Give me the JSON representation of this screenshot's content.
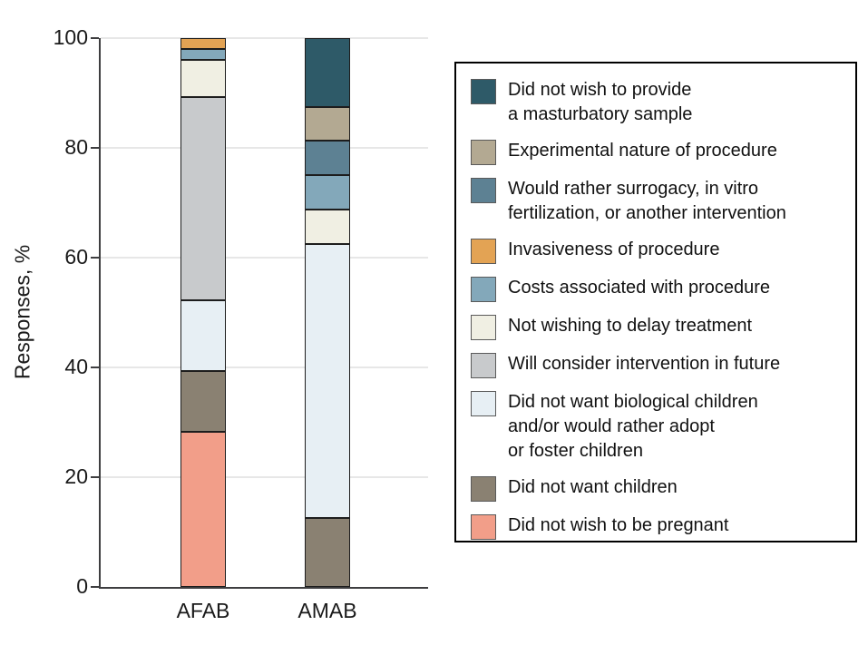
{
  "chart_data": {
    "type": "bar",
    "stacked": true,
    "title": "",
    "ylabel": "Responses, %",
    "xlabel": "",
    "ylim": [
      0,
      100
    ],
    "yticks": [
      0,
      20,
      40,
      60,
      80,
      100
    ],
    "grid": true,
    "legend_position": "right",
    "categories": [
      "AFAB",
      "AMAB"
    ],
    "series": [
      {
        "name": "Did not wish to provide a masturbatory sample",
        "label_lines": [
          "Did not wish to provide",
          "a masturbatory sample"
        ],
        "color": "#2e5a68",
        "values": [
          0,
          12.5
        ]
      },
      {
        "name": "Experimental nature of procedure",
        "label_lines": [
          "Experimental nature of procedure"
        ],
        "color": "#b3a992",
        "values": [
          0,
          6.25
        ]
      },
      {
        "name": "Would rather surrogacy, in vitro fertilization, or another intervention",
        "label_lines": [
          "Would rather surrogacy, in vitro",
          "fertilization, or another intervention"
        ],
        "color": "#5d8193",
        "values": [
          0,
          6.25
        ]
      },
      {
        "name": "Invasiveness of procedure",
        "label_lines": [
          "Invasiveness of procedure"
        ],
        "color": "#e3a354",
        "values": [
          2,
          0
        ]
      },
      {
        "name": "Costs associated with procedure",
        "label_lines": [
          "Costs associated with procedure"
        ],
        "color": "#83a8ba",
        "values": [
          2,
          6.25
        ]
      },
      {
        "name": "Not wishing to delay treatment",
        "label_lines": [
          "Not wishing to delay treatment"
        ],
        "color": "#f0efe3",
        "values": [
          6.7,
          6.25
        ]
      },
      {
        "name": "Will consider intervention in future",
        "label_lines": [
          "Will consider intervention in future"
        ],
        "color": "#c8cacc",
        "values": [
          37,
          0
        ]
      },
      {
        "name": "Did not want biological children and/or would rather adopt or foster children",
        "label_lines": [
          "Did not want biological children",
          "and/or would rather adopt",
          "or foster children"
        ],
        "color": "#e7eff4",
        "values": [
          13,
          50
        ]
      },
      {
        "name": "Did not want children",
        "label_lines": [
          "Did not want children"
        ],
        "color": "#8a8172",
        "values": [
          11,
          12.5
        ]
      },
      {
        "name": "Did not wish to be pregnant",
        "label_lines": [
          "Did not wish to be pregnant"
        ],
        "color": "#f29e89",
        "values": [
          28.3,
          0
        ]
      }
    ]
  },
  "colors": {
    "axis": "#3e3e40",
    "grid": "#e7e7e7",
    "text": "#1a1a1a",
    "segment_border": "#1d1d1d",
    "swatch_border": "#5a5a5a",
    "legend_border": "#000000",
    "background": "#ffffff"
  }
}
